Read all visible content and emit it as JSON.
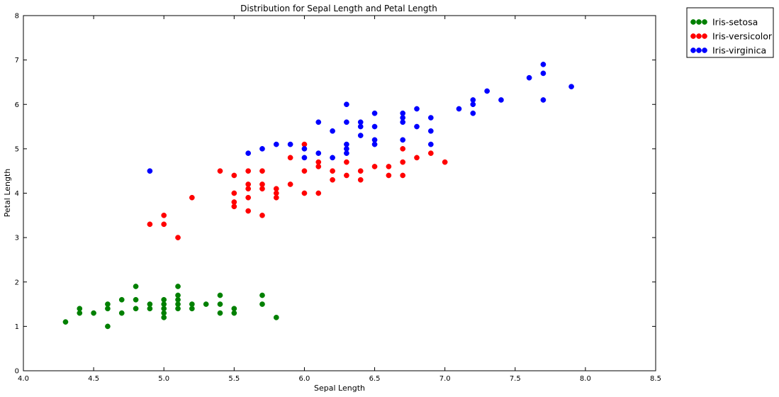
{
  "chart_data": {
    "type": "scatter",
    "title": "Distribution for Sepal Length and Petal Length",
    "xlabel": "Sepal Length",
    "ylabel": "Petal Length",
    "xlim": [
      4.0,
      8.5
    ],
    "ylim": [
      0,
      8
    ],
    "xticks": [
      "4.0",
      "4.5",
      "5.0",
      "5.5",
      "6.0",
      "6.5",
      "7.0",
      "7.5",
      "8.0",
      "8.5"
    ],
    "yticks": [
      "0",
      "1",
      "2",
      "3",
      "4",
      "5",
      "6",
      "7",
      "8"
    ],
    "grid": false,
    "legend_position": "outside-top-right",
    "series": [
      {
        "name": "Iris-setosa",
        "color": "#008000",
        "points": [
          [
            4.3,
            1.1
          ],
          [
            4.4,
            1.3
          ],
          [
            4.4,
            1.4
          ],
          [
            4.5,
            1.3
          ],
          [
            4.6,
            1.0
          ],
          [
            4.6,
            1.4
          ],
          [
            4.6,
            1.5
          ],
          [
            4.7,
            1.3
          ],
          [
            4.7,
            1.6
          ],
          [
            4.8,
            1.4
          ],
          [
            4.8,
            1.6
          ],
          [
            4.8,
            1.9
          ],
          [
            4.9,
            1.4
          ],
          [
            4.9,
            1.5
          ],
          [
            5.0,
            1.2
          ],
          [
            5.0,
            1.3
          ],
          [
            5.0,
            1.4
          ],
          [
            5.0,
            1.5
          ],
          [
            5.0,
            1.6
          ],
          [
            5.1,
            1.4
          ],
          [
            5.1,
            1.5
          ],
          [
            5.1,
            1.6
          ],
          [
            5.1,
            1.7
          ],
          [
            5.1,
            1.9
          ],
          [
            5.2,
            1.4
          ],
          [
            5.2,
            1.5
          ],
          [
            5.3,
            1.5
          ],
          [
            5.4,
            1.3
          ],
          [
            5.4,
            1.5
          ],
          [
            5.4,
            1.7
          ],
          [
            5.5,
            1.3
          ],
          [
            5.5,
            1.4
          ],
          [
            5.7,
            1.5
          ],
          [
            5.7,
            1.7
          ],
          [
            5.8,
            1.2
          ]
        ]
      },
      {
        "name": "Iris-versicolor",
        "color": "#ff0000",
        "points": [
          [
            4.9,
            3.3
          ],
          [
            5.0,
            3.3
          ],
          [
            5.0,
            3.5
          ],
          [
            5.1,
            3.0
          ],
          [
            5.2,
            3.9
          ],
          [
            5.4,
            4.5
          ],
          [
            5.5,
            3.7
          ],
          [
            5.5,
            3.8
          ],
          [
            5.5,
            4.0
          ],
          [
            5.5,
            4.4
          ],
          [
            5.6,
            3.6
          ],
          [
            5.6,
            3.9
          ],
          [
            5.6,
            4.1
          ],
          [
            5.6,
            4.2
          ],
          [
            5.6,
            4.5
          ],
          [
            5.7,
            3.5
          ],
          [
            5.7,
            4.1
          ],
          [
            5.7,
            4.2
          ],
          [
            5.7,
            4.5
          ],
          [
            5.8,
            3.9
          ],
          [
            5.8,
            4.0
          ],
          [
            5.8,
            4.1
          ],
          [
            5.9,
            4.2
          ],
          [
            5.9,
            4.8
          ],
          [
            6.0,
            4.0
          ],
          [
            6.0,
            4.5
          ],
          [
            6.0,
            5.1
          ],
          [
            6.1,
            4.0
          ],
          [
            6.1,
            4.6
          ],
          [
            6.1,
            4.7
          ],
          [
            6.2,
            4.3
          ],
          [
            6.2,
            4.5
          ],
          [
            6.3,
            4.4
          ],
          [
            6.3,
            4.7
          ],
          [
            6.4,
            4.3
          ],
          [
            6.4,
            4.5
          ],
          [
            6.5,
            4.6
          ],
          [
            6.6,
            4.4
          ],
          [
            6.6,
            4.6
          ],
          [
            6.7,
            4.4
          ],
          [
            6.7,
            4.7
          ],
          [
            6.7,
            5.0
          ],
          [
            6.8,
            4.8
          ],
          [
            6.9,
            4.9
          ],
          [
            7.0,
            4.7
          ]
        ]
      },
      {
        "name": "Iris-virginica",
        "color": "#0000ff",
        "points": [
          [
            4.9,
            4.5
          ],
          [
            5.6,
            4.9
          ],
          [
            5.7,
            5.0
          ],
          [
            5.8,
            5.1
          ],
          [
            5.9,
            5.1
          ],
          [
            6.0,
            4.8
          ],
          [
            6.0,
            5.0
          ],
          [
            6.1,
            4.9
          ],
          [
            6.1,
            5.6
          ],
          [
            6.2,
            4.8
          ],
          [
            6.2,
            5.4
          ],
          [
            6.3,
            4.9
          ],
          [
            6.3,
            5.0
          ],
          [
            6.3,
            5.1
          ],
          [
            6.3,
            5.6
          ],
          [
            6.3,
            6.0
          ],
          [
            6.4,
            5.3
          ],
          [
            6.4,
            5.5
          ],
          [
            6.4,
            5.6
          ],
          [
            6.5,
            5.1
          ],
          [
            6.5,
            5.2
          ],
          [
            6.5,
            5.5
          ],
          [
            6.5,
            5.8
          ],
          [
            6.7,
            5.2
          ],
          [
            6.7,
            5.6
          ],
          [
            6.7,
            5.7
          ],
          [
            6.7,
            5.8
          ],
          [
            6.8,
            5.5
          ],
          [
            6.8,
            5.9
          ],
          [
            6.9,
            5.1
          ],
          [
            6.9,
            5.4
          ],
          [
            6.9,
            5.7
          ],
          [
            7.1,
            5.9
          ],
          [
            7.2,
            5.8
          ],
          [
            7.2,
            6.0
          ],
          [
            7.2,
            6.1
          ],
          [
            7.3,
            6.3
          ],
          [
            7.4,
            6.1
          ],
          [
            7.6,
            6.6
          ],
          [
            7.7,
            6.1
          ],
          [
            7.7,
            6.7
          ],
          [
            7.7,
            6.9
          ],
          [
            7.9,
            6.4
          ]
        ]
      }
    ]
  }
}
